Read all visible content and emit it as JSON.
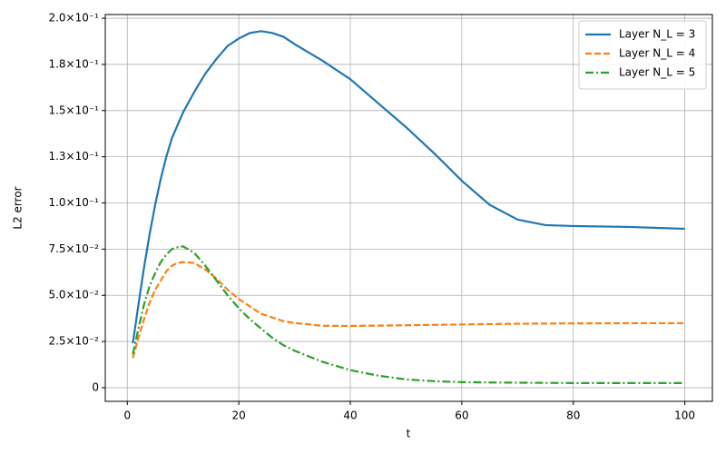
{
  "chart_data": {
    "type": "line",
    "xlabel": "t",
    "ylabel": "L2 error",
    "x": [
      1,
      2,
      3,
      4,
      5,
      6,
      7,
      8,
      9,
      10,
      12,
      14,
      16,
      18,
      20,
      22,
      24,
      26,
      28,
      30,
      35,
      40,
      45,
      50,
      55,
      60,
      65,
      70,
      75,
      80,
      90,
      100
    ],
    "series": [
      {
        "name": "Layer N_L = 3",
        "color": "#1f77b4",
        "linestyle": "-",
        "values": [
          0.024,
          0.045,
          0.065,
          0.083,
          0.099,
          0.113,
          0.125,
          0.135,
          0.142,
          0.149,
          0.16,
          0.17,
          0.178,
          0.185,
          0.189,
          0.192,
          0.193,
          0.192,
          0.19,
          0.186,
          0.177,
          0.167,
          0.154,
          0.141,
          0.127,
          0.112,
          0.099,
          0.091,
          0.088,
          0.0875,
          0.087,
          0.086
        ]
      },
      {
        "name": "Layer N_L = 4",
        "color": "#ff7f0e",
        "linestyle": "--",
        "values": [
          0.016,
          0.027,
          0.037,
          0.046,
          0.053,
          0.058,
          0.063,
          0.066,
          0.0675,
          0.068,
          0.0675,
          0.064,
          0.059,
          0.053,
          0.048,
          0.044,
          0.04,
          0.038,
          0.036,
          0.035,
          0.0335,
          0.0334,
          0.0336,
          0.0338,
          0.034,
          0.0342,
          0.0344,
          0.0346,
          0.0347,
          0.0348,
          0.0349,
          0.0349
        ]
      },
      {
        "name": "Layer N_L = 5",
        "color": "#2ca02c",
        "linestyle": "-.",
        "values": [
          0.018,
          0.032,
          0.045,
          0.055,
          0.062,
          0.068,
          0.072,
          0.075,
          0.076,
          0.0765,
          0.073,
          0.066,
          0.058,
          0.05,
          0.043,
          0.037,
          0.032,
          0.027,
          0.023,
          0.02,
          0.014,
          0.0095,
          0.0065,
          0.0045,
          0.0035,
          0.003,
          0.0028,
          0.0027,
          0.0026,
          0.0025,
          0.0025,
          0.0025
        ]
      }
    ],
    "xlim": [
      -3.95,
      104.95
    ],
    "xticks": [
      0,
      20,
      40,
      60,
      80,
      100
    ],
    "ylim": [
      -0.0074,
      0.202
    ],
    "yticks": [
      0,
      {
        "value": 0.025,
        "label": "2.5×10⁻²"
      },
      {
        "value": 0.05,
        "label": "5.0×10⁻²"
      },
      {
        "value": 0.075,
        "label": "7.5×10⁻²"
      },
      {
        "value": 0.1,
        "label": "1.0×10⁻¹"
      },
      {
        "value": 0.125,
        "label": "1.3×10⁻¹"
      },
      {
        "value": 0.15,
        "label": "1.5×10⁻¹"
      },
      {
        "value": 0.175,
        "label": "1.8×10⁻¹"
      },
      {
        "value": 0.2,
        "label": "2.0×10⁻¹"
      }
    ],
    "grid": true,
    "legend": "upper right"
  }
}
